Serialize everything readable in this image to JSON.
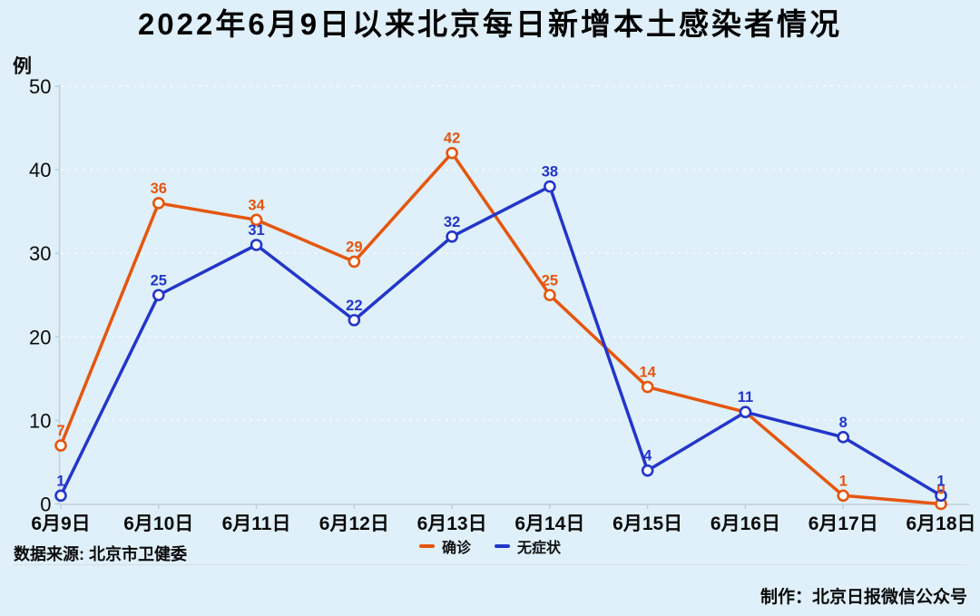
{
  "page": {
    "background_color": "#DFF0FA"
  },
  "title": "2022年6月9日以来北京每日新增本土感染者情况",
  "chart_data": {
    "type": "line",
    "unit_label": "例",
    "categories": [
      "6月9日",
      "6月10日",
      "6月11日",
      "6月12日",
      "6月13日",
      "6月14日",
      "6月15日",
      "6月16日",
      "6月17日",
      "6月18日"
    ],
    "series": [
      {
        "name": "确诊",
        "color": "#E5560E",
        "values": [
          7,
          36,
          34,
          29,
          42,
          25,
          14,
          11,
          1,
          0
        ],
        "value_labels_hidden_at": [
          7
        ]
      },
      {
        "name": "无症状",
        "color": "#2336C9",
        "values": [
          1,
          25,
          31,
          22,
          32,
          38,
          4,
          11,
          8,
          1
        ],
        "value_labels_hidden_at": []
      }
    ],
    "ylim": [
      0,
      50
    ],
    "yticks": [
      0,
      10,
      20,
      30,
      40,
      50
    ],
    "grid": "horizontal-dashed",
    "legend_position": "bottom-center",
    "marker": "open-circle"
  },
  "footer": {
    "source": "数据来源: 北京市卫健委",
    "credit": "制作：北京日报微信公众号"
  }
}
